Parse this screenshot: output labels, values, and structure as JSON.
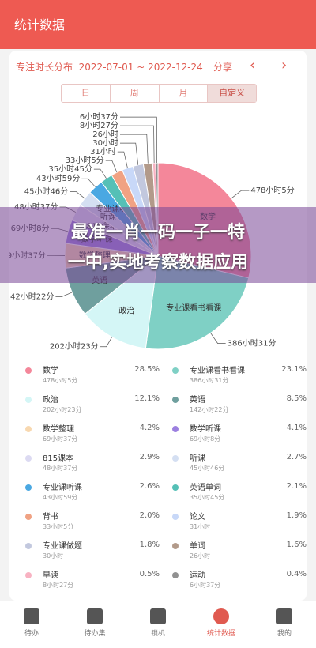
{
  "header": {
    "title": "统计数据"
  },
  "card": {
    "title": "专注时长分布",
    "date_range": "2022-07-01 ~ 2022-12-24",
    "share": "分享",
    "tabs": [
      "日",
      "周",
      "月",
      "自定义"
    ],
    "selected_tab": 3
  },
  "items": [
    {
      "name": "数学",
      "time": "478小时5分",
      "percent": 28.5,
      "percent_label": "28.5%",
      "color": "#f4879a"
    },
    {
      "name": "专业课看书看课",
      "time": "386小时31分",
      "percent": 23.1,
      "percent_label": "23.1%",
      "color": "#7fd0c5"
    },
    {
      "name": "政治",
      "time": "202小时23分",
      "percent": 12.1,
      "percent_label": "12.1%",
      "color": "#d4f6f6"
    },
    {
      "name": "英语",
      "time": "142小时22分",
      "percent": 8.5,
      "percent_label": "8.5%",
      "color": "#6f9f9e"
    },
    {
      "name": "数学整理",
      "time": "69小时37分",
      "percent": 4.2,
      "percent_label": "4.2%",
      "color": "#f8d8b0"
    },
    {
      "name": "数学听课",
      "time": "69小时8分",
      "percent": 4.1,
      "percent_label": "4.1%",
      "color": "#9c80e0"
    },
    {
      "name": "815课本",
      "time": "48小时37分",
      "percent": 2.9,
      "percent_label": "2.9%",
      "color": "#dcdaf2"
    },
    {
      "name": "听课",
      "time": "45小时46分",
      "percent": 2.7,
      "percent_label": "2.7%",
      "color": "#d4dff2"
    },
    {
      "name": "专业课听课",
      "time": "43小时59分",
      "percent": 2.6,
      "percent_label": "2.6%",
      "color": "#4aa8e2"
    },
    {
      "name": "英语单词",
      "time": "35小时45分",
      "percent": 2.1,
      "percent_label": "2.1%",
      "color": "#55c0b6"
    },
    {
      "name": "背书",
      "time": "33小时5分",
      "percent": 2.0,
      "percent_label": "2.0%",
      "color": "#f0a283"
    },
    {
      "name": "论文",
      "time": "31小时",
      "percent": 1.9,
      "percent_label": "1.9%",
      "color": "#c8d8f8"
    },
    {
      "name": "专业课做题",
      "time": "30小时",
      "percent": 1.8,
      "percent_label": "1.8%",
      "color": "#c2c8de"
    },
    {
      "name": "单词",
      "time": "26小时",
      "percent": 1.6,
      "percent_label": "1.6%",
      "color": "#b29a8a"
    },
    {
      "name": "早读",
      "time": "8小时27分",
      "percent": 0.5,
      "percent_label": "0.5%",
      "color": "#f8b2c2"
    },
    {
      "name": "运动",
      "time": "6小时37分",
      "percent": 0.4,
      "percent_label": "0.4%",
      "color": "#919191"
    }
  ],
  "overlay": {
    "lines": [
      "最准一肖一码一子一特",
      "一中,实地考察数据应用"
    ]
  },
  "nav": [
    {
      "label": "待办"
    },
    {
      "label": "待办集"
    },
    {
      "label": "锁机"
    },
    {
      "label": "统计数据"
    },
    {
      "label": "我的"
    }
  ],
  "active_nav": 3
}
